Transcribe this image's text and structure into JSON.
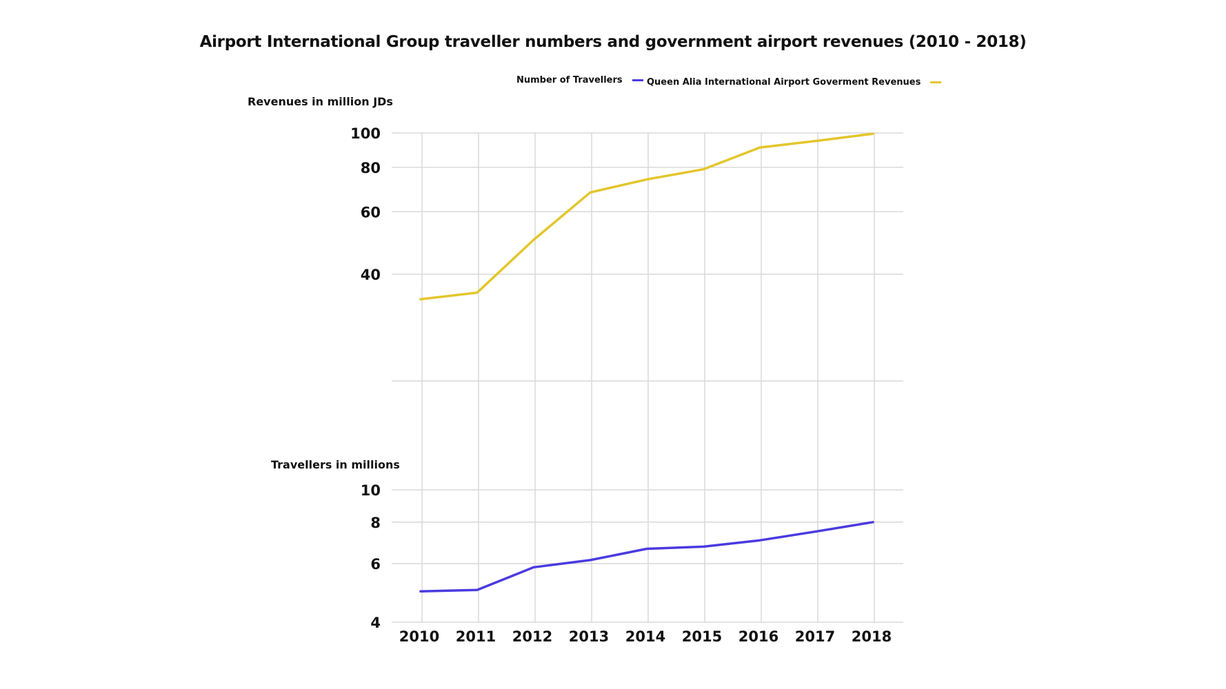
{
  "chart_data": {
    "type": "line",
    "title": "Airport International Group traveller numbers and government airport revenues (2010 - 2018)",
    "x": [
      "2010",
      "2011",
      "2012",
      "2013",
      "2014",
      "2015",
      "2016",
      "2017",
      "2018"
    ],
    "legend": {
      "placement": "top-right",
      "entries": [
        {
          "name": "Number of Travellers",
          "color": "#4b3ae0"
        },
        {
          "name": "Queen Alia International Airport Goverment Revenues",
          "color": "#e3c62c"
        }
      ]
    },
    "panels": [
      {
        "id": "revenues",
        "ylabel": "Revenues in million JDs",
        "yscale": "log",
        "ylim": [
          20,
          100
        ],
        "yticks": [
          100,
          80,
          60,
          40
        ],
        "grid": true,
        "series": [
          {
            "name": "Queen Alia International Airport Goverment Revenues",
            "color": "#e3c62c",
            "values": [
              34,
              35.5,
              50,
              68,
              74,
              79,
              91,
              95,
              99.5
            ]
          }
        ]
      },
      {
        "id": "travellers",
        "ylabel": "Travellers in millions",
        "yscale": "log",
        "ylim": [
          4,
          10
        ],
        "yticks": [
          10,
          8,
          6,
          4
        ],
        "grid": true,
        "series": [
          {
            "name": "Number of Travellers",
            "color": "#4b3ae0",
            "values": [
              4.95,
              5.0,
              5.85,
              6.15,
              6.65,
              6.75,
              7.05,
              7.5,
              8.0
            ]
          }
        ]
      }
    ]
  }
}
